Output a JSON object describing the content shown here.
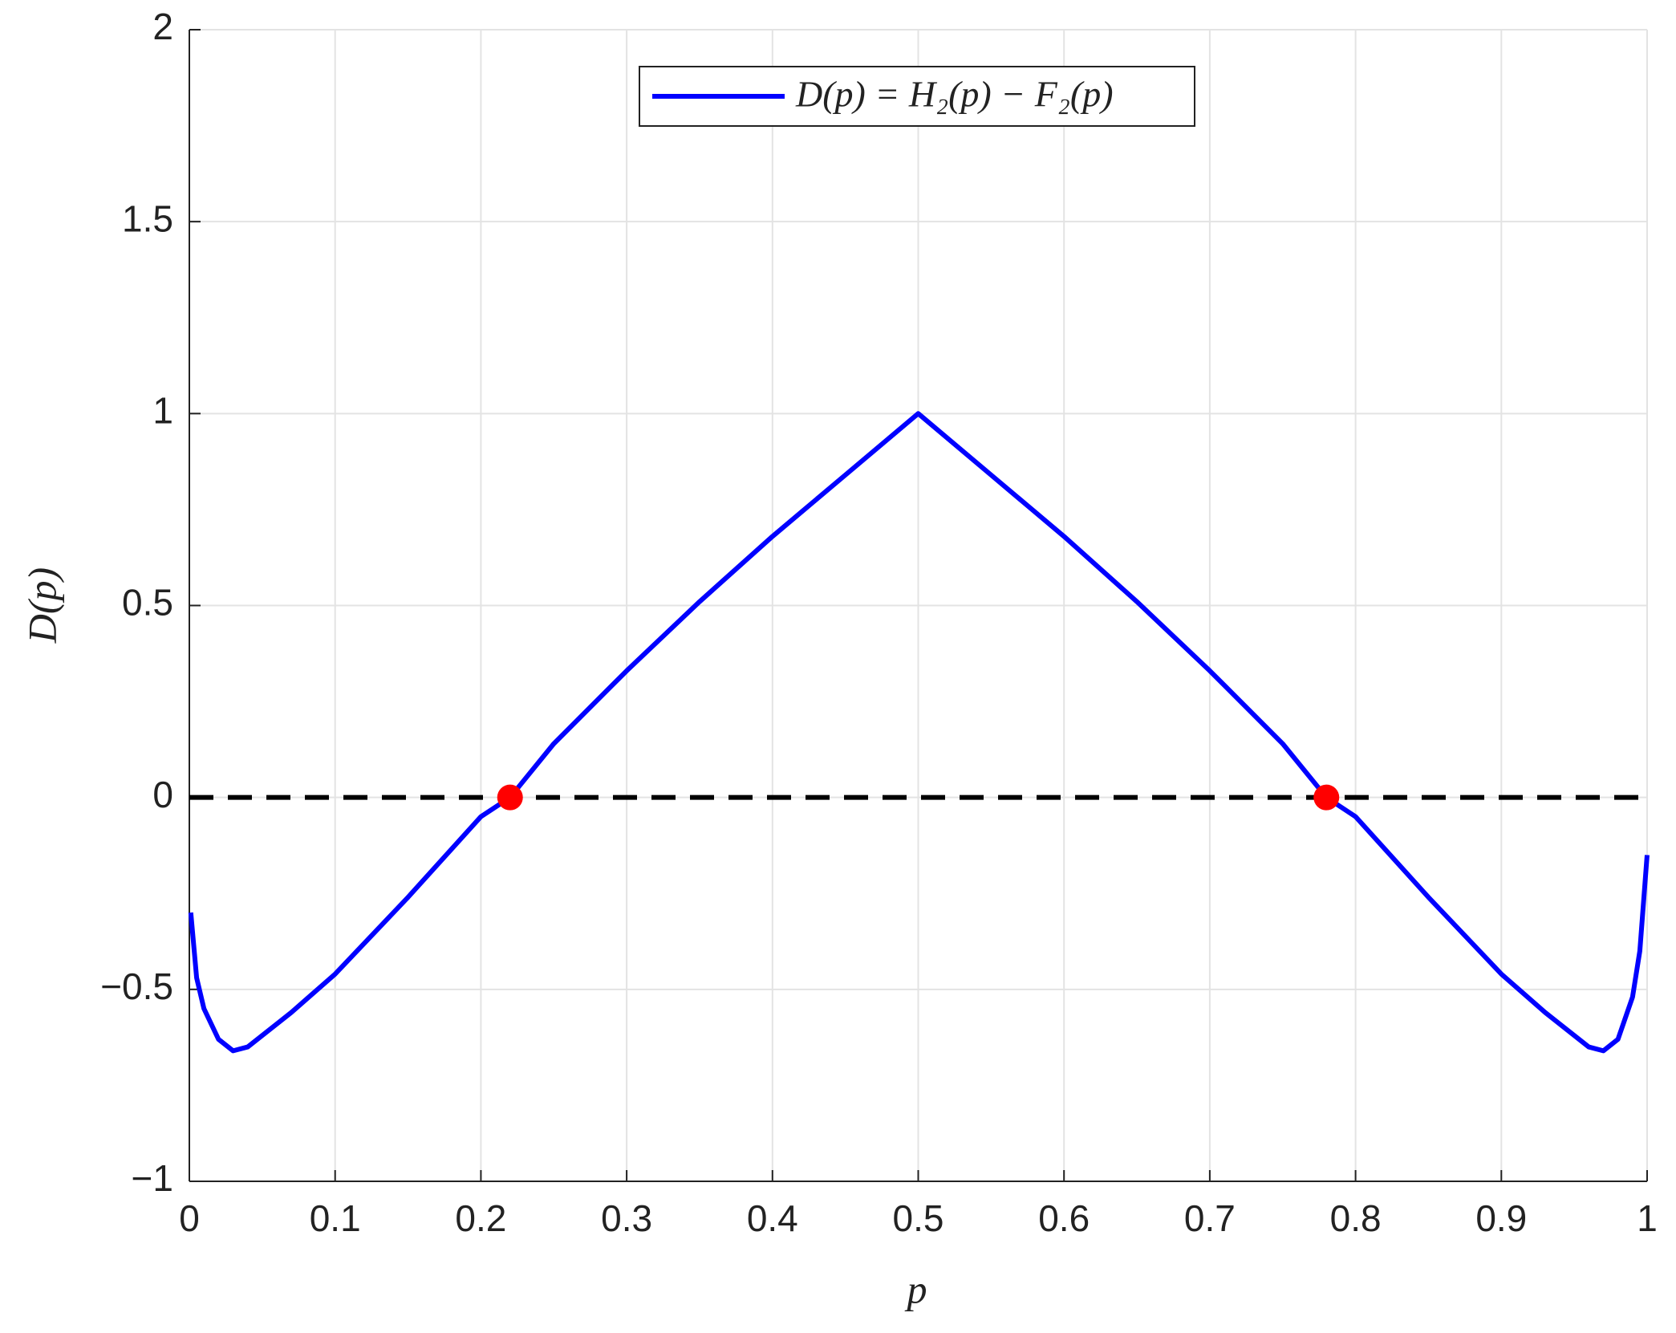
{
  "chart_data": {
    "type": "line",
    "xlabel": "p",
    "ylabel": "D(p)",
    "x": [
      0.001,
      0.005,
      0.01,
      0.02,
      0.03,
      0.04,
      0.05,
      0.07,
      0.1,
      0.15,
      0.2,
      0.22,
      0.25,
      0.3,
      0.35,
      0.4,
      0.45,
      0.5,
      0.55,
      0.6,
      0.65,
      0.7,
      0.75,
      0.78,
      0.8,
      0.85,
      0.9,
      0.93,
      0.95,
      0.96,
      0.97,
      0.98,
      0.99,
      0.995,
      1.0
    ],
    "series": [
      {
        "name": "D(p) = H₂(p) − F₂(p)",
        "color": "#0000ff",
        "values": [
          -0.3,
          -0.47,
          -0.55,
          -0.63,
          -0.66,
          -0.65,
          -0.62,
          -0.56,
          -0.46,
          -0.26,
          -0.05,
          0,
          0.14,
          0.33,
          0.51,
          0.68,
          0.84,
          1,
          0.84,
          0.68,
          0.51,
          0.33,
          0.14,
          0,
          -0.05,
          -0.26,
          -0.46,
          -0.56,
          -0.62,
          -0.65,
          -0.66,
          -0.63,
          -0.52,
          -0.4,
          -0.15
        ]
      }
    ],
    "points": {
      "x": [
        0.22,
        0.78
      ],
      "y": [
        0,
        0
      ],
      "color": "#ff0000"
    },
    "hline": 0,
    "xlim": [
      0,
      1
    ],
    "ylim": [
      -1,
      2
    ],
    "xticks": [
      0,
      0.1,
      0.2,
      0.3,
      0.4,
      0.5,
      0.6,
      0.7,
      0.8,
      0.9,
      1
    ],
    "yticks": [
      {
        "value": -1,
        "label": "−1"
      },
      {
        "value": -0.5,
        "label": "−0.5"
      },
      0,
      0.5,
      1,
      1.5,
      2
    ],
    "grid": true
  }
}
